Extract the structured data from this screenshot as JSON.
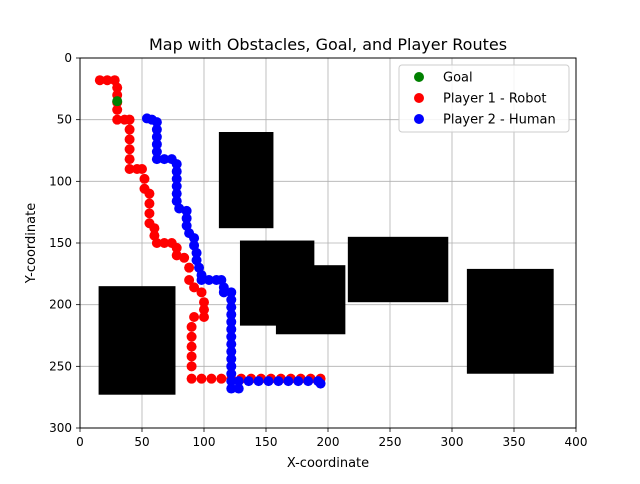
{
  "chart_data": {
    "type": "scatter",
    "title": "Map with Obstacles, Goal, and Player Routes",
    "xlabel": "X-coordinate",
    "ylabel": "Y-coordinate",
    "xlim": [
      0,
      400
    ],
    "ylim": [
      300,
      0
    ],
    "y_inverted": true,
    "grid": true,
    "x_ticks": [
      0,
      50,
      100,
      150,
      200,
      250,
      300,
      350,
      400
    ],
    "y_ticks": [
      0,
      50,
      100,
      150,
      200,
      250,
      300
    ],
    "legend_position": "top-right",
    "obstacles": [
      {
        "x0": 112,
        "x1": 156,
        "y0": 60,
        "y1": 138
      },
      {
        "x0": 129,
        "x1": 189,
        "y0": 148,
        "y1": 217
      },
      {
        "x0": 158,
        "x1": 214,
        "y0": 168,
        "y1": 224
      },
      {
        "x0": 216,
        "x1": 297,
        "y0": 145,
        "y1": 198
      },
      {
        "x0": 312,
        "x1": 382,
        "y0": 171,
        "y1": 256
      },
      {
        "x0": 15,
        "x1": 77,
        "y0": 185,
        "y1": 273
      }
    ],
    "series": [
      {
        "name": "Goal",
        "color": "#008000",
        "points": [
          [
            30,
            35
          ]
        ]
      },
      {
        "name": "Player 1 - Robot",
        "color": "#ff0000",
        "points": [
          [
            16,
            18
          ],
          [
            22,
            18
          ],
          [
            28,
            18
          ],
          [
            30,
            24
          ],
          [
            30,
            30
          ],
          [
            30,
            36
          ],
          [
            30,
            42
          ],
          [
            30,
            50
          ],
          [
            36,
            50
          ],
          [
            40,
            50
          ],
          [
            40,
            58
          ],
          [
            40,
            66
          ],
          [
            40,
            74
          ],
          [
            40,
            82
          ],
          [
            40,
            90
          ],
          [
            46,
            90
          ],
          [
            50,
            90
          ],
          [
            52,
            98
          ],
          [
            52,
            106
          ],
          [
            56,
            110
          ],
          [
            56,
            118
          ],
          [
            56,
            126
          ],
          [
            56,
            134
          ],
          [
            60,
            138
          ],
          [
            60,
            144
          ],
          [
            62,
            150
          ],
          [
            68,
            150
          ],
          [
            74,
            150
          ],
          [
            78,
            154
          ],
          [
            78,
            160
          ],
          [
            84,
            162
          ],
          [
            88,
            170
          ],
          [
            88,
            180
          ],
          [
            92,
            186
          ],
          [
            98,
            190
          ],
          [
            100,
            198
          ],
          [
            100,
            204
          ],
          [
            100,
            210
          ],
          [
            92,
            210
          ],
          [
            90,
            218
          ],
          [
            90,
            226
          ],
          [
            90,
            234
          ],
          [
            90,
            242
          ],
          [
            90,
            250
          ],
          [
            90,
            260
          ],
          [
            98,
            260
          ],
          [
            106,
            260
          ],
          [
            114,
            260
          ],
          [
            122,
            260
          ],
          [
            130,
            260
          ],
          [
            138,
            260
          ],
          [
            146,
            260
          ],
          [
            154,
            260
          ],
          [
            162,
            260
          ],
          [
            170,
            260
          ],
          [
            178,
            260
          ],
          [
            186,
            260
          ],
          [
            194,
            260
          ]
        ]
      },
      {
        "name": "Player 2 - Human",
        "color": "#0000ff",
        "points": [
          [
            54,
            49
          ],
          [
            58,
            50
          ],
          [
            62,
            52
          ],
          [
            62,
            58
          ],
          [
            62,
            64
          ],
          [
            62,
            70
          ],
          [
            62,
            76
          ],
          [
            62,
            82
          ],
          [
            68,
            82
          ],
          [
            74,
            82
          ],
          [
            78,
            86
          ],
          [
            78,
            92
          ],
          [
            78,
            98
          ],
          [
            78,
            104
          ],
          [
            78,
            110
          ],
          [
            78,
            116
          ],
          [
            80,
            122
          ],
          [
            86,
            124
          ],
          [
            86,
            130
          ],
          [
            86,
            136
          ],
          [
            88,
            142
          ],
          [
            92,
            146
          ],
          [
            92,
            152
          ],
          [
            94,
            158
          ],
          [
            94,
            164
          ],
          [
            96,
            170
          ],
          [
            98,
            176
          ],
          [
            98,
            180
          ],
          [
            104,
            180
          ],
          [
            110,
            180
          ],
          [
            114,
            180
          ],
          [
            116,
            186
          ],
          [
            116,
            190
          ],
          [
            122,
            190
          ],
          [
            122,
            196
          ],
          [
            122,
            202
          ],
          [
            122,
            208
          ],
          [
            122,
            214
          ],
          [
            122,
            220
          ],
          [
            122,
            226
          ],
          [
            122,
            232
          ],
          [
            122,
            238
          ],
          [
            122,
            244
          ],
          [
            122,
            250
          ],
          [
            122,
            256
          ],
          [
            122,
            262
          ],
          [
            122,
            268
          ],
          [
            128,
            268
          ],
          [
            128,
            262
          ],
          [
            136,
            262
          ],
          [
            144,
            262
          ],
          [
            152,
            262
          ],
          [
            160,
            262
          ],
          [
            168,
            262
          ],
          [
            176,
            262
          ],
          [
            184,
            262
          ],
          [
            192,
            262
          ],
          [
            194,
            264
          ]
        ]
      }
    ]
  }
}
